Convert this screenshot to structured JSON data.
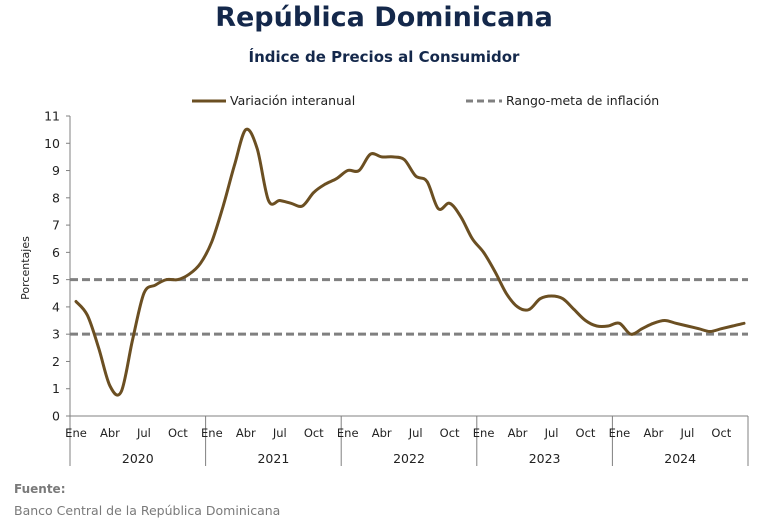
{
  "title": "República Dominicana",
  "subtitle": "Índice de Precios al Consumidor",
  "source": {
    "label": "Fuente:",
    "text": "Banco Central de la República Dominicana"
  },
  "colors": {
    "series": "#6b4f22",
    "target": "#808080",
    "title": "#14284b"
  },
  "chart_data": {
    "type": "line",
    "ylabel": "Porcentajes",
    "ylim": [
      0,
      11
    ],
    "yticks": [
      0,
      1,
      2,
      3,
      4,
      5,
      6,
      7,
      8,
      9,
      10,
      11
    ],
    "grid": false,
    "legend_position": "top",
    "month_tick_labels": [
      "Ene",
      "Abr",
      "Jul",
      "Oct"
    ],
    "years": [
      "2020",
      "2021",
      "2022",
      "2023",
      "2024"
    ],
    "series": [
      {
        "name": "Variación interanual",
        "style": "solid",
        "x": [
          "2020-01",
          "2020-02",
          "2020-03",
          "2020-04",
          "2020-05",
          "2020-06",
          "2020-07",
          "2020-08",
          "2020-09",
          "2020-10",
          "2020-11",
          "2020-12",
          "2021-01",
          "2021-02",
          "2021-03",
          "2021-04",
          "2021-05",
          "2021-06",
          "2021-07",
          "2021-08",
          "2021-09",
          "2021-10",
          "2021-11",
          "2021-12",
          "2022-01",
          "2022-02",
          "2022-03",
          "2022-04",
          "2022-05",
          "2022-06",
          "2022-07",
          "2022-08",
          "2022-09",
          "2022-10",
          "2022-11",
          "2022-12",
          "2023-01",
          "2023-02",
          "2023-03",
          "2023-04",
          "2023-05",
          "2023-06",
          "2023-07",
          "2023-08",
          "2023-09",
          "2023-10",
          "2023-11",
          "2023-12",
          "2024-01",
          "2024-02",
          "2024-03",
          "2024-04",
          "2024-05",
          "2024-06",
          "2024-07",
          "2024-08",
          "2024-09",
          "2024-10",
          "2024-11",
          "2024-12"
        ],
        "values": [
          4.2,
          3.7,
          2.5,
          1.1,
          0.9,
          2.8,
          4.5,
          4.8,
          5.0,
          5.0,
          5.2,
          5.6,
          6.4,
          7.7,
          9.2,
          10.5,
          9.8,
          7.9,
          7.9,
          7.8,
          7.7,
          8.2,
          8.5,
          8.7,
          9.0,
          9.0,
          9.6,
          9.5,
          9.5,
          9.4,
          8.8,
          8.6,
          7.6,
          7.8,
          7.3,
          6.5,
          6.0,
          5.3,
          4.5,
          4.0,
          3.9,
          4.3,
          4.4,
          4.3,
          3.9,
          3.5,
          3.3,
          3.3,
          3.4,
          3.0,
          3.2,
          3.4,
          3.5,
          3.4,
          3.3,
          3.2,
          3.1,
          3.2,
          3.3,
          3.4
        ]
      },
      {
        "name": "Rango-meta de inflación",
        "style": "dashed",
        "bounds": [
          3,
          5
        ]
      }
    ]
  }
}
